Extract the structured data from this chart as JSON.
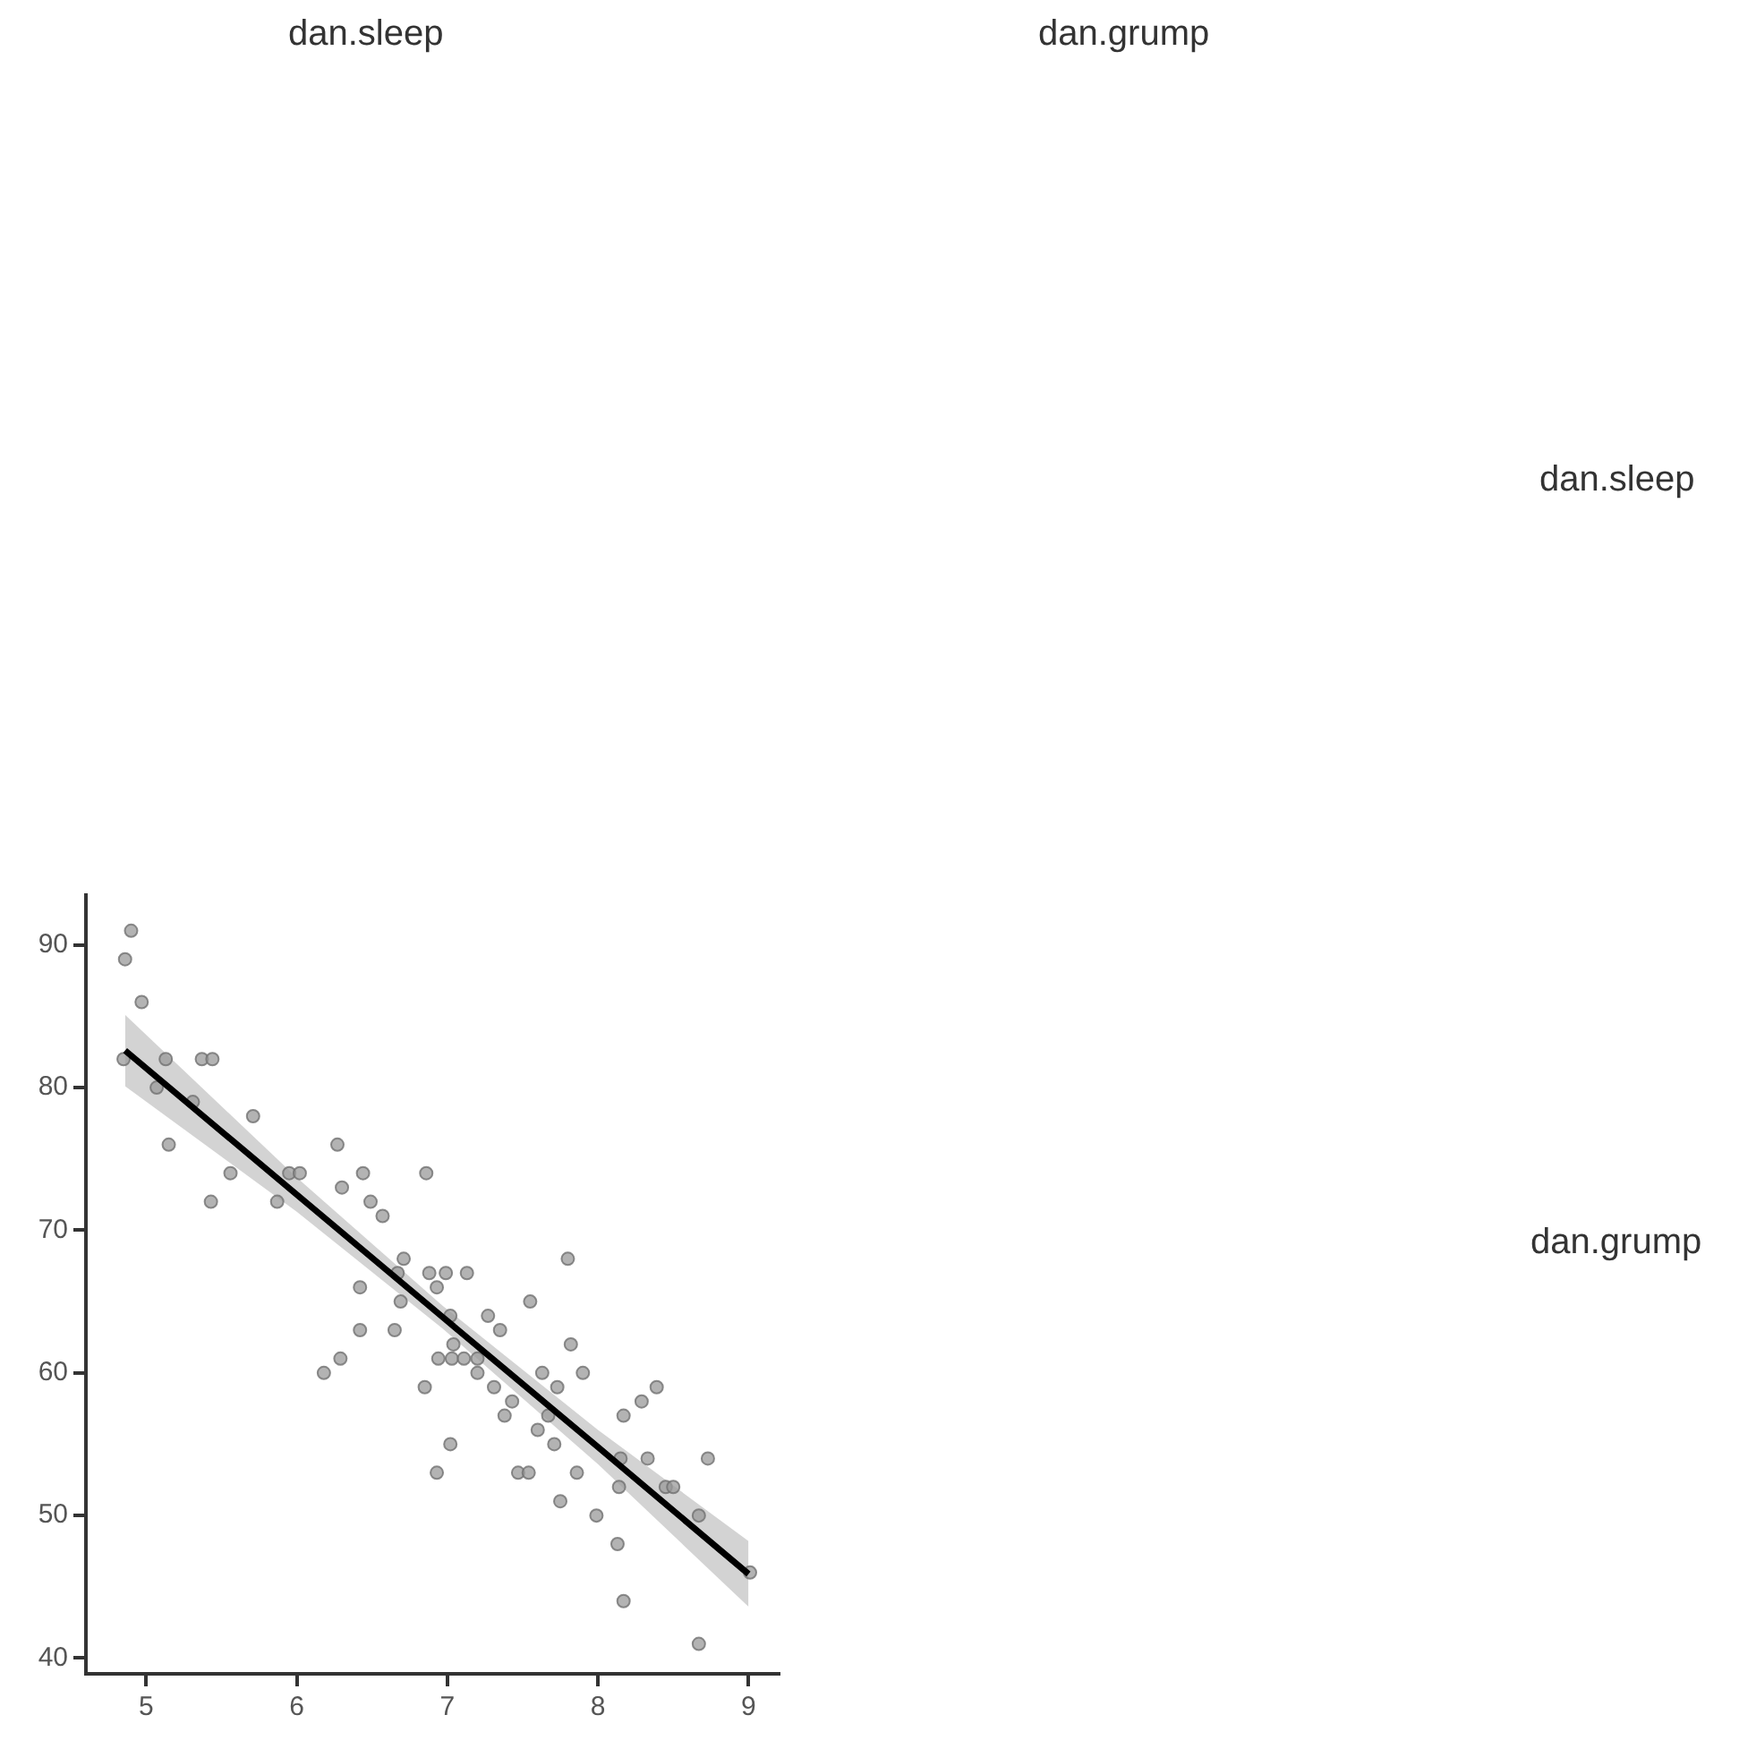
{
  "chart_data": {
    "type": "scatter",
    "annotations": [
      "dan.sleep",
      "dan.grump",
      "dan.sleep",
      "dan.grump"
    ],
    "xlim": [
      4.6,
      9.2
    ],
    "ylim": [
      38.9,
      93.5
    ],
    "xticks": [
      5,
      6,
      7,
      8,
      9
    ],
    "yticks": [
      40,
      50,
      60,
      70,
      80,
      90
    ],
    "grid": false,
    "legend": false,
    "marker": "circle",
    "series": [
      {
        "type": "scatter",
        "color": "#999999",
        "x": [
          4.86,
          4.9,
          4.97,
          4.85,
          5.13,
          5.37,
          5.44,
          5.07,
          5.31,
          5.15,
          5.71,
          5.56,
          5.43,
          5.95,
          6.02,
          6.27,
          6.3,
          6.44,
          6.86,
          5.87,
          6.49,
          6.57,
          6.71,
          6.67,
          6.88,
          6.99,
          7.13,
          6.42,
          6.93,
          7.8,
          6.69,
          7.55,
          7.02,
          7.27,
          6.42,
          6.65,
          7.35,
          7.04,
          7.82,
          6.94,
          7.03,
          7.11,
          7.2,
          7.2,
          7.31,
          6.85,
          7.63,
          7.9,
          7.73,
          8.39,
          8.29,
          7.43,
          7.38,
          8.17,
          7.67,
          7.6,
          6.18,
          6.29,
          7.71,
          7.02,
          6.93,
          7.47,
          7.54,
          7.86,
          7.75,
          7.99,
          8.13,
          8.17,
          8.15,
          8.14,
          8.33,
          8.45,
          8.5,
          8.73,
          8.67,
          8.67,
          9.01
        ],
        "values": [
          89,
          91,
          86,
          82,
          82,
          82,
          82,
          80,
          79,
          76,
          78,
          74,
          72,
          74,
          74,
          76,
          73,
          74,
          74,
          72,
          72,
          71,
          68,
          67,
          67,
          67,
          67,
          66,
          66,
          68,
          65,
          65,
          64,
          64,
          63,
          63,
          63,
          62,
          62,
          61,
          61,
          61,
          61,
          60,
          59,
          59,
          60,
          60,
          59,
          59,
          58,
          58,
          57,
          57,
          57,
          56,
          60,
          61,
          55,
          55,
          53,
          53,
          53,
          53,
          51,
          50,
          48,
          44,
          54,
          52,
          54,
          52,
          52,
          54,
          50,
          41,
          46
        ]
      },
      {
        "type": "line",
        "color": "#000000",
        "x": [
          4.86,
          6,
          6.97,
          8,
          9
        ],
        "values": [
          82.6,
          72.5,
          63.9,
          54.8,
          45.9
        ],
        "lower": [
          80.1,
          71.3,
          63.1,
          53.6,
          43.6
        ],
        "upper": [
          85.1,
          73.7,
          64.7,
          56.0,
          48.2
        ],
        "marker": "none",
        "line_style": "solid"
      }
    ]
  }
}
